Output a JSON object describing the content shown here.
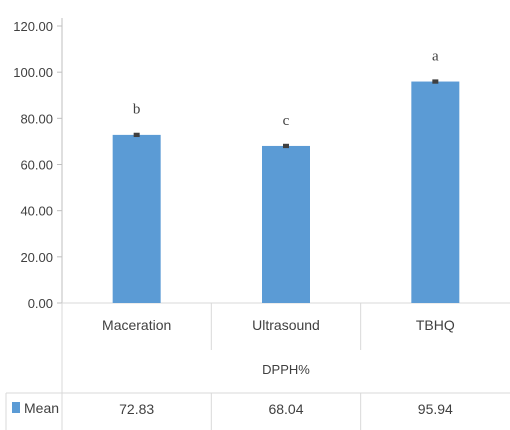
{
  "chart_data": {
    "type": "bar",
    "group_label": "DPPH%",
    "categories": [
      "Maceration",
      "Ultrasound",
      "TBHQ"
    ],
    "series": [
      {
        "name": "Mean",
        "color": "#5b9bd5",
        "values": [
          72.83,
          68.04,
          95.94
        ],
        "value_labels": [
          "72.83",
          "68.04",
          "95.94"
        ],
        "error": [
          0.5,
          0.5,
          0.5
        ]
      }
    ],
    "significance_labels": [
      "b",
      "c",
      "a"
    ],
    "ylim": [
      0,
      120
    ],
    "yticks": [
      0,
      20,
      40,
      60,
      80,
      100,
      120
    ],
    "ytick_labels": [
      "0.00",
      "20.00",
      "40.00",
      "60.00",
      "80.00",
      "100.00",
      "120.00"
    ],
    "grid": false,
    "legend": "data-table-left"
  }
}
